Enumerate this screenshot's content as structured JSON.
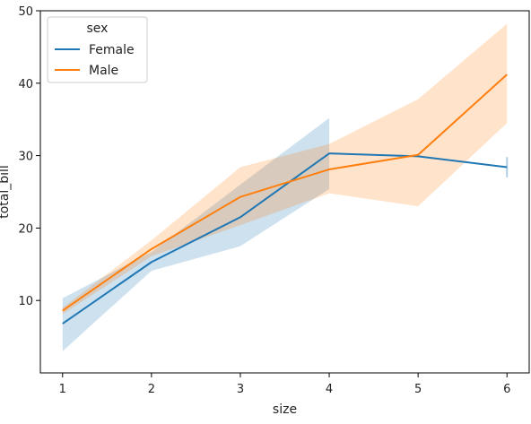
{
  "chart_data": {
    "type": "line",
    "xlabel": "size",
    "ylabel": "total_bill",
    "xlim": [
      0.75,
      6.25
    ],
    "ylim": [
      0,
      50
    ],
    "xticks": [
      1,
      2,
      3,
      4,
      5,
      6
    ],
    "yticks": [
      10,
      20,
      30,
      40,
      50
    ],
    "grid": false,
    "legend": {
      "title": "sex",
      "placement": "top-left"
    },
    "series": [
      {
        "name": "Female",
        "color": "#1f77b4",
        "x": [
          1,
          2,
          3,
          4,
          5,
          6
        ],
        "y": [
          6.8,
          15.3,
          21.5,
          30.3,
          29.9,
          28.4
        ],
        "ci_low": [
          3.0,
          14.1,
          17.5,
          25.4,
          null,
          27.0
        ],
        "ci_high": [
          10.3,
          16.7,
          26.0,
          35.2,
          null,
          29.8
        ]
      },
      {
        "name": "Male",
        "color": "#ff7f0e",
        "x": [
          1,
          2,
          3,
          4,
          5,
          6
        ],
        "y": [
          8.6,
          17.1,
          24.3,
          28.1,
          30.1,
          41.2
        ],
        "ci_low": [
          8.1,
          16.1,
          20.4,
          24.8,
          23.0,
          34.5
        ],
        "ci_high": [
          9.0,
          18.3,
          28.4,
          31.6,
          37.8,
          48.2
        ]
      }
    ]
  }
}
